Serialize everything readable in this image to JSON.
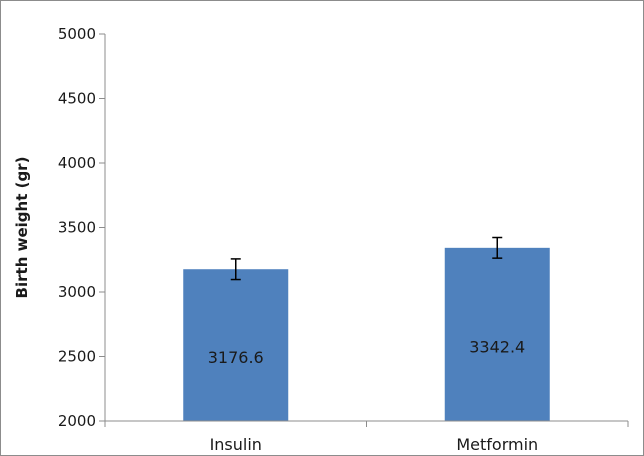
{
  "chart_data": {
    "type": "bar",
    "title": "",
    "xlabel": "",
    "ylabel": "Birth weight (gr)",
    "ylim": [
      2000,
      5000
    ],
    "yticks": [
      2000,
      2500,
      3000,
      3500,
      4000,
      4500,
      5000
    ],
    "categories": [
      "Insulin",
      "Metformin"
    ],
    "values": [
      3176.6,
      3342.4
    ],
    "data_labels": [
      "3176.6",
      "3342.4"
    ],
    "error_bars": [
      80,
      80
    ],
    "bar_color": "#4f81bd",
    "grid": false,
    "legend": "none"
  }
}
